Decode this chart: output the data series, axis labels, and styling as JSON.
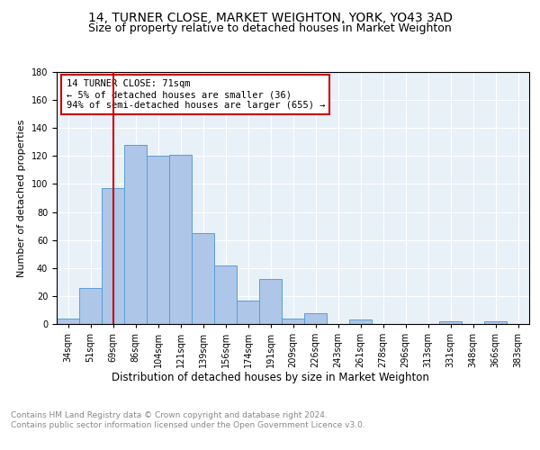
{
  "title": "14, TURNER CLOSE, MARKET WEIGHTON, YORK, YO43 3AD",
  "subtitle": "Size of property relative to detached houses in Market Weighton",
  "xlabel": "Distribution of detached houses by size in Market Weighton",
  "ylabel": "Number of detached properties",
  "categories": [
    "34sqm",
    "51sqm",
    "69sqm",
    "86sqm",
    "104sqm",
    "121sqm",
    "139sqm",
    "156sqm",
    "174sqm",
    "191sqm",
    "209sqm",
    "226sqm",
    "243sqm",
    "261sqm",
    "278sqm",
    "296sqm",
    "313sqm",
    "331sqm",
    "348sqm",
    "366sqm",
    "383sqm"
  ],
  "values": [
    4,
    26,
    97,
    128,
    120,
    121,
    65,
    42,
    17,
    32,
    4,
    8,
    0,
    3,
    0,
    0,
    0,
    2,
    0,
    2,
    0
  ],
  "bar_color": "#aec6e8",
  "bar_edge_color": "#5a9fd4",
  "background_color": "#e8f0f8",
  "fig_background_color": "#ffffff",
  "grid_color": "#ffffff",
  "annotation_box_text": "14 TURNER CLOSE: 71sqm\n← 5% of detached houses are smaller (36)\n94% of semi-detached houses are larger (655) →",
  "annotation_box_color": "#ffffff",
  "annotation_box_edge_color": "#cc0000",
  "red_line_index": 2,
  "red_line_color": "#cc0000",
  "ylim": [
    0,
    180
  ],
  "yticks": [
    0,
    20,
    40,
    60,
    80,
    100,
    120,
    140,
    160,
    180
  ],
  "footer_text": "Contains HM Land Registry data © Crown copyright and database right 2024.\nContains public sector information licensed under the Open Government Licence v3.0.",
  "title_fontsize": 10,
  "subtitle_fontsize": 9,
  "xlabel_fontsize": 8.5,
  "ylabel_fontsize": 8,
  "tick_fontsize": 7,
  "annotation_fontsize": 7.5,
  "footer_fontsize": 6.5
}
